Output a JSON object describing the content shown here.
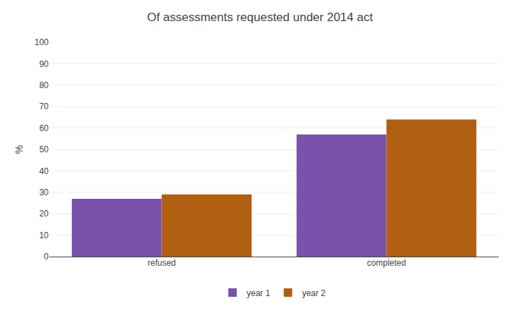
{
  "chart_data": {
    "type": "bar",
    "title": "Of assessments requested under 2014 act",
    "categories": [
      "refused",
      "completed"
    ],
    "series": [
      {
        "name": "year 1",
        "color": "#7B52AB",
        "values": [
          27,
          57
        ]
      },
      {
        "name": "year 2",
        "color": "#B06010",
        "values": [
          29,
          64
        ]
      }
    ],
    "ylabel": "%",
    "ylim": [
      0,
      100
    ],
    "yticks": [
      0,
      10,
      20,
      30,
      40,
      50,
      60,
      70,
      80,
      90,
      100
    ],
    "grid": true,
    "legend": "bottom"
  }
}
